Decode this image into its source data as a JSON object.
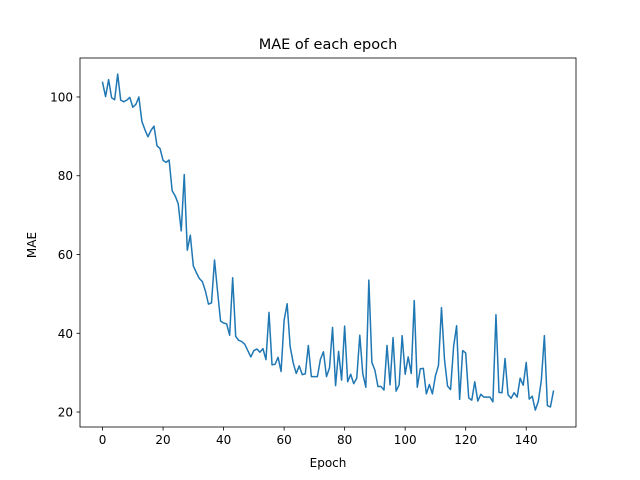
{
  "chart_data": {
    "type": "line",
    "title": "MAE of each epoch",
    "xlabel": "Epoch",
    "ylabel": "MAE",
    "xlim": [
      -7.45,
      156.45
    ],
    "ylim": [
      16.2,
      109.9
    ],
    "xticks": [
      0,
      20,
      40,
      60,
      80,
      100,
      120,
      140
    ],
    "yticks": [
      20,
      40,
      60,
      80,
      100
    ],
    "grid": false,
    "legend": false,
    "colors": {
      "line": "#1f77b4",
      "axes": "#000000",
      "background": "#ffffff"
    },
    "series": [
      {
        "values": [
          103.7,
          100.1,
          104.4,
          99.8,
          99.3,
          105.8,
          99.2,
          98.8,
          99.2,
          99.9,
          97.4,
          98.1,
          100.0,
          93.8,
          91.7,
          89.9,
          91.5,
          92.6,
          87.6,
          86.9,
          83.9,
          83.4,
          84.0,
          76.2,
          74.9,
          72.9,
          66.0,
          80.3,
          61.1,
          64.9,
          57.1,
          55.4,
          53.9,
          53.1,
          50.7,
          47.4,
          47.7,
          58.6,
          50.7,
          43.1,
          42.6,
          42.4,
          39.5,
          54.1,
          39.2,
          38.2,
          37.9,
          37.2,
          35.6,
          34.0,
          35.6,
          36.0,
          35.2,
          36.1,
          33.3,
          45.3,
          32.0,
          32.1,
          33.9,
          30.3,
          43.3,
          47.5,
          36.6,
          32.5,
          29.8,
          31.7,
          29.5,
          29.7,
          36.9,
          29.0,
          29.0,
          29.0,
          33.4,
          35.3,
          29.0,
          31.2,
          41.5,
          26.7,
          35.4,
          28.1,
          41.8,
          27.7,
          29.6,
          27.2,
          28.6,
          39.5,
          29.7,
          26.3,
          53.5,
          32.6,
          30.6,
          26.5,
          26.5,
          25.6,
          36.9,
          26.9,
          38.9,
          25.3,
          26.9,
          39.4,
          29.6,
          34.0,
          29.8,
          48.3,
          26.3,
          31.0,
          31.1,
          24.6,
          27.0,
          24.6,
          29.2,
          31.8,
          46.5,
          33.3,
          26.6,
          25.7,
          36.6,
          41.9,
          23.2,
          35.6,
          35.0,
          23.6,
          23.0,
          27.7,
          22.8,
          24.5,
          23.8,
          23.8,
          23.8,
          22.6,
          44.7,
          25.0,
          24.9,
          33.6,
          24.4,
          23.5,
          24.9,
          23.8,
          28.6,
          26.8,
          32.6,
          23.3,
          24.0,
          20.5,
          22.7,
          28.1,
          39.4,
          21.6,
          21.3,
          25.3
        ]
      }
    ]
  }
}
